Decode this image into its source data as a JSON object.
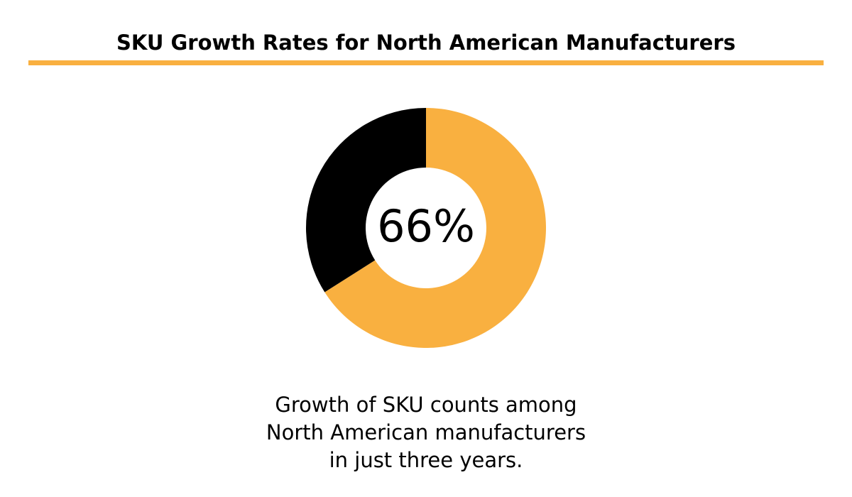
{
  "chart_data": {
    "type": "donut",
    "title": "SKU Growth Rates for North American Manufacturers",
    "categories": [
      null,
      null
    ],
    "values": [
      66,
      34
    ],
    "value_labels": [
      "66%",
      null
    ],
    "colors": [
      "#f9b040",
      "#000000"
    ],
    "caption": [
      "Growth of SKU counts among",
      "North American manufacturers",
      "in just three years."
    ]
  }
}
